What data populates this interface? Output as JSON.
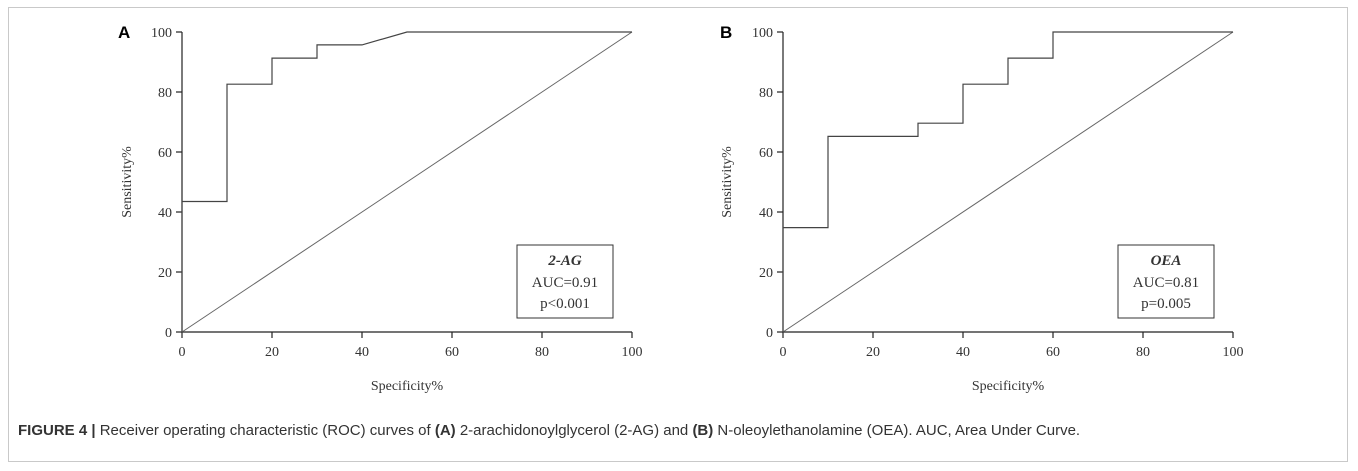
{
  "caption": {
    "figure_label": "FIGURE 4 |",
    "text_1": " Receiver operating characteristic (ROC) curves of ",
    "label_a": "(A)",
    "text_2": " 2-arachidonoylglycerol (2-AG) and ",
    "label_b": "(B)",
    "text_3": " N-oleoylethanolamine (OEA). AUC, Area Under Curve."
  },
  "chart_data": [
    {
      "type": "line",
      "panel_label": "A",
      "xlabel": "Specificity%",
      "ylabel": "Sensitivity%",
      "xlim": [
        0,
        100
      ],
      "ylim": [
        0,
        100
      ],
      "xticks": [
        0,
        20,
        40,
        60,
        80,
        100
      ],
      "yticks": [
        0,
        20,
        40,
        60,
        80,
        100
      ],
      "grid": false,
      "legend_position": "bottom-right",
      "legend": {
        "name": "2-AG",
        "auc": "AUC=0.91",
        "p": "p<0.001"
      },
      "series": [
        {
          "name": "2-AG",
          "x": [
            0,
            0,
            10,
            10,
            20,
            20,
            30,
            30,
            40,
            50,
            100
          ],
          "y": [
            0,
            43.5,
            43.5,
            82.6,
            82.6,
            91.3,
            91.3,
            95.7,
            95.7,
            100,
            100
          ]
        }
      ],
      "reference_line": {
        "x": [
          0,
          100
        ],
        "y": [
          0,
          100
        ]
      }
    },
    {
      "type": "line",
      "panel_label": "B",
      "xlabel": "Specificity%",
      "ylabel": "Sensitivity%",
      "xlim": [
        0,
        100
      ],
      "ylim": [
        0,
        100
      ],
      "xticks": [
        0,
        20,
        40,
        60,
        80,
        100
      ],
      "yticks": [
        0,
        20,
        40,
        60,
        80,
        100
      ],
      "grid": false,
      "legend_position": "bottom-right",
      "legend": {
        "name": "OEA",
        "auc": "AUC=0.81",
        "p": "p=0.005"
      },
      "series": [
        {
          "name": "OEA",
          "x": [
            0,
            0,
            10,
            10,
            30,
            30,
            40,
            40,
            50,
            50,
            60,
            60,
            100
          ],
          "y": [
            0,
            34.8,
            34.8,
            65.2,
            65.2,
            69.6,
            69.6,
            82.6,
            82.6,
            91.3,
            91.3,
            100,
            100
          ]
        }
      ],
      "reference_line": {
        "x": [
          0,
          100
        ],
        "y": [
          0,
          100
        ]
      }
    }
  ]
}
